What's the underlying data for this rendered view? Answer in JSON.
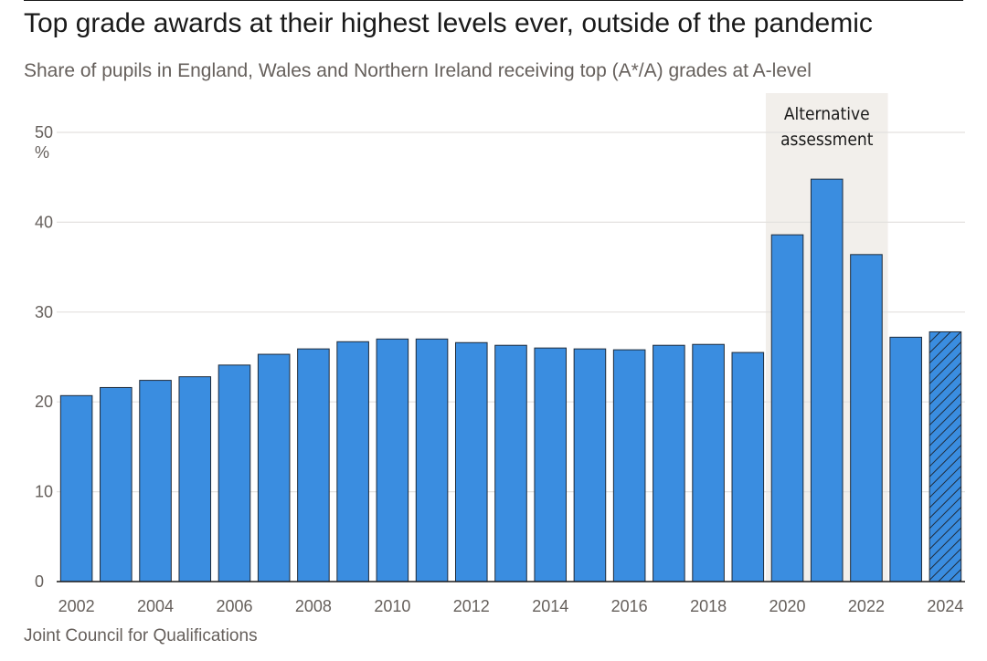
{
  "header": {
    "title": "Top grade awards at their highest levels ever, outside of the pandemic",
    "subtitle": "Share of pupils in England, Wales and Northern Ireland receiving top (A*/A) grades at A-level"
  },
  "footer": {
    "source": "Joint Council for Qualifications"
  },
  "colors": {
    "bar": "#3a8de0",
    "bar_stroke": "#1f2b3a",
    "shade": "#f2efeb",
    "grid": "#e3e1df",
    "axis": "#1a1a1a"
  },
  "chart_data": {
    "type": "bar",
    "title": "Top grade awards at their highest levels ever, outside of the pandemic",
    "subtitle": "Share of pupils in England, Wales and Northern Ireland receiving top (A*/A) grades at A-level",
    "ylabel": "%",
    "xlabel": "",
    "ylim": [
      0,
      50
    ],
    "yticks": [
      0,
      10,
      20,
      30,
      40,
      50
    ],
    "grid": true,
    "categories": [
      "2002",
      "2003",
      "2004",
      "2005",
      "2006",
      "2007",
      "2008",
      "2009",
      "2010",
      "2011",
      "2012",
      "2013",
      "2014",
      "2015",
      "2016",
      "2017",
      "2018",
      "2019",
      "2020",
      "2021",
      "2022",
      "2023",
      "2024"
    ],
    "xtick_labels": [
      "2002",
      "2004",
      "2006",
      "2008",
      "2010",
      "2012",
      "2014",
      "2016",
      "2018",
      "2020",
      "2022",
      "2024"
    ],
    "values": [
      20.7,
      21.6,
      22.4,
      22.8,
      24.1,
      25.3,
      25.9,
      26.7,
      27.0,
      27.0,
      26.6,
      26.3,
      26.0,
      25.9,
      25.8,
      26.3,
      26.4,
      25.5,
      38.6,
      44.8,
      36.4,
      27.2,
      27.8
    ],
    "hatched": [
      "2024"
    ],
    "annotation": {
      "label_lines": [
        "Alternative",
        "assessment"
      ],
      "from": "2020",
      "to": "2022"
    }
  }
}
